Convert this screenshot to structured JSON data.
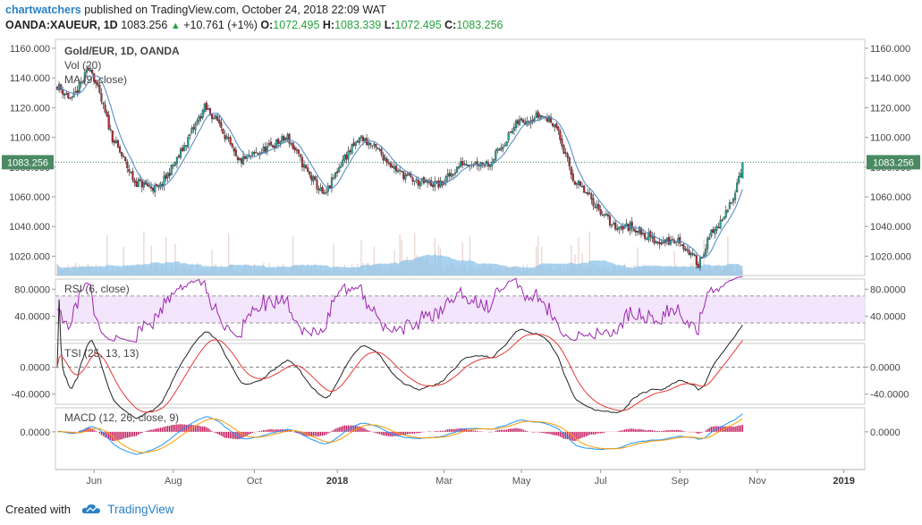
{
  "header": {
    "author": "chartwatchers",
    "published_text": " published on TradingView.com, October 24, 2018 22:09 WAT",
    "symbol": "OANDA:XAUEUR, 1D",
    "last": "1083.256",
    "change": "+10.761 (+1%)",
    "o_label": "O:",
    "o": "1072.495",
    "h_label": "H:",
    "h": "1083.339",
    "l_label": "L:",
    "l": "1072.495",
    "c_label": "C:",
    "c": "1083.256"
  },
  "footer": {
    "created_with": "Created with",
    "brand": "TradingView"
  },
  "colors": {
    "up": "#26a69a",
    "down": "#b22833",
    "ma": "#5a8fc6",
    "volume": "#8cc3e8",
    "rsi": "#9c27b0",
    "rsi_band": "#f3e5fb",
    "tsi": "#222222",
    "tsi_signal": "#e53935",
    "macd": "#2196f3",
    "macd_signal": "#ff9800",
    "macd_hist": "#c2185b",
    "price_tag": "#4a8a62"
  },
  "chart_data": {
    "type": "candlestick",
    "price_pane": {
      "title": "Gold/EUR, 1D, OANDA",
      "volume_label": "Vol (20)",
      "ma_label": "MA (9, close)",
      "y_ticks": [
        "1160.000",
        "1140.000",
        "1120.000",
        "1100.000",
        "1080.000",
        "1060.000",
        "1040.000",
        "1020.000"
      ],
      "y_values": [
        1160,
        1140,
        1120,
        1100,
        1080,
        1060,
        1040,
        1020
      ],
      "ylim": [
        1007,
        1166
      ],
      "last_price": "1083.256",
      "last_value": 1083.256,
      "keypoints": [
        [
          0,
          1135
        ],
        [
          8,
          1125
        ],
        [
          18,
          1148
        ],
        [
          30,
          1100
        ],
        [
          42,
          1070
        ],
        [
          55,
          1065
        ],
        [
          65,
          1085
        ],
        [
          80,
          1120
        ],
        [
          88,
          1110
        ],
        [
          98,
          1083
        ],
        [
          110,
          1090
        ],
        [
          125,
          1100
        ],
        [
          135,
          1078
        ],
        [
          145,
          1060
        ],
        [
          155,
          1085
        ],
        [
          165,
          1100
        ],
        [
          175,
          1090
        ],
        [
          185,
          1077
        ],
        [
          195,
          1070
        ],
        [
          208,
          1068
        ],
        [
          220,
          1083
        ],
        [
          235,
          1083
        ],
        [
          250,
          1110
        ],
        [
          262,
          1115
        ],
        [
          270,
          1110
        ],
        [
          280,
          1072
        ],
        [
          290,
          1058
        ],
        [
          302,
          1040
        ],
        [
          312,
          1040
        ],
        [
          325,
          1030
        ],
        [
          338,
          1030
        ],
        [
          348,
          1015
        ],
        [
          355,
          1035
        ],
        [
          362,
          1045
        ],
        [
          368,
          1065
        ],
        [
          372,
          1083
        ]
      ],
      "n_bars": 373
    },
    "rsi_pane": {
      "label": "RSI (6, close)",
      "y_ticks": [
        "80.0000",
        "40.0000"
      ],
      "y_values": [
        80,
        40
      ],
      "band": [
        30,
        70
      ],
      "ylim": [
        5,
        95
      ]
    },
    "tsi_pane": {
      "label": "TSI (25, 13, 13)",
      "y_ticks": [
        "0.0000",
        "-40.0000"
      ],
      "y_values": [
        0,
        -40
      ],
      "ylim": [
        -55,
        35
      ]
    },
    "macd_pane": {
      "label": "MACD (12, 26, close, 9)",
      "y_ticks": [
        "0.0000"
      ],
      "y_values": [
        0
      ],
      "ylim": [
        -55,
        35
      ]
    },
    "x_axis": {
      "ticks": [
        {
          "label": "Jun",
          "bar": 20
        },
        {
          "label": "Aug",
          "bar": 63
        },
        {
          "label": "Oct",
          "bar": 107
        },
        {
          "label": "2018",
          "bar": 152,
          "bold": true
        },
        {
          "label": "Mar",
          "bar": 210
        },
        {
          "label": "May",
          "bar": 252
        },
        {
          "label": "Jul",
          "bar": 295
        },
        {
          "label": "Sep",
          "bar": 338
        },
        {
          "label": "Nov",
          "bar": 380
        },
        {
          "label": "2019",
          "bar": 427,
          "bold": true
        }
      ]
    }
  }
}
